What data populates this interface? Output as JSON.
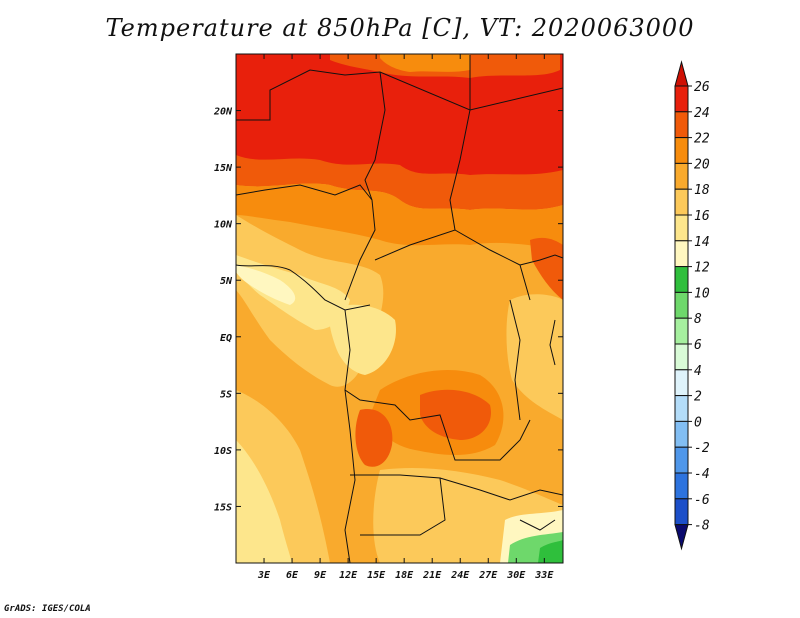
{
  "title": "Temperature at 850hPa [C], VT: 2020063000",
  "credit": "GrADS: IGES/COLA",
  "map": {
    "lon_range": [
      0,
      35
    ],
    "lat_range": [
      -20,
      25
    ],
    "lon_ticks": [
      "3E",
      "6E",
      "9E",
      "12E",
      "15E",
      "18E",
      "21E",
      "24E",
      "27E",
      "30E",
      "33E"
    ],
    "lon_values": [
      3,
      6,
      9,
      12,
      15,
      18,
      21,
      24,
      27,
      30,
      33
    ],
    "lat_ticks": [
      "20N",
      "15N",
      "10N",
      "5N",
      "EQ",
      "5S",
      "10S",
      "15S"
    ],
    "lat_values": [
      20,
      15,
      10,
      5,
      0,
      -5,
      -10,
      -15
    ]
  },
  "colorbar": {
    "levels": [
      "26",
      "24",
      "22",
      "20",
      "18",
      "16",
      "14",
      "12",
      "10",
      "8",
      "6",
      "4",
      "2",
      "0",
      "-2",
      "-4",
      "-6",
      "-8"
    ],
    "colors": [
      "#e8200c",
      "#f05a0a",
      "#f78c0d",
      "#f9aa2d",
      "#fcc95a",
      "#fde68c",
      "#fff7c0",
      "#2fbf3c",
      "#6ed86b",
      "#a6f09f",
      "#d9fbd7",
      "#dff3fb",
      "#b4ddf9",
      "#82bef3",
      "#4f97ea",
      "#2d73de",
      "#1c4fc9",
      "#11289e"
    ],
    "top_color": "#cf1004",
    "bottom_color": "#0a0a6e"
  }
}
